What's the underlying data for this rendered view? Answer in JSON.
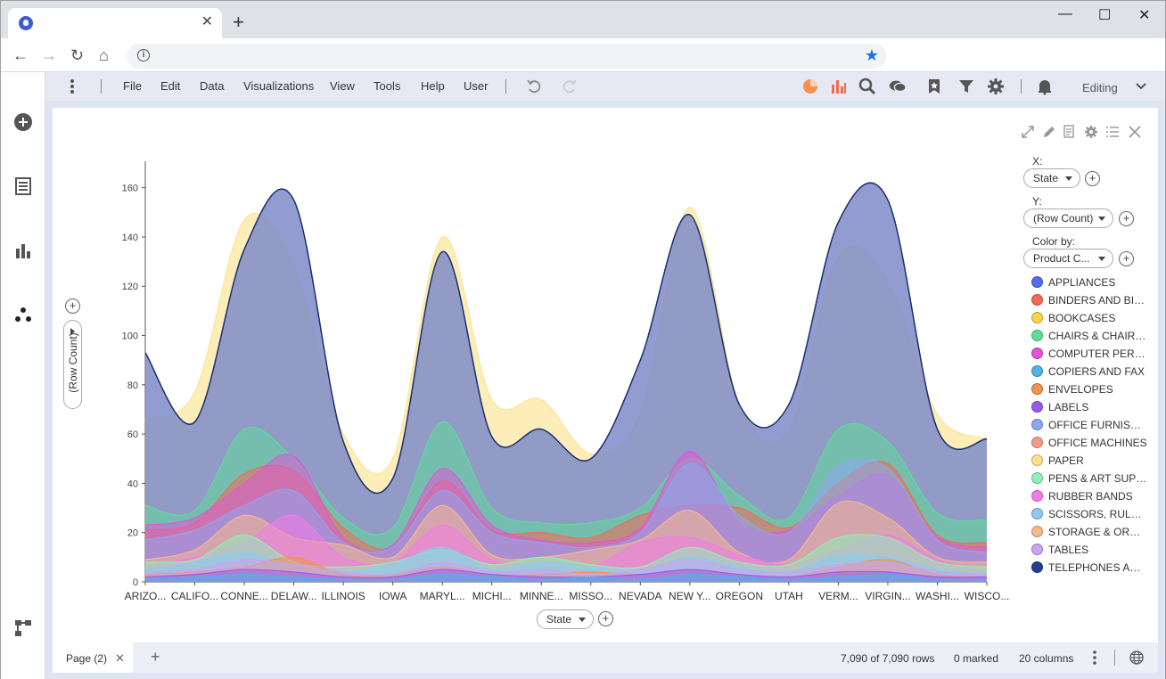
{
  "browser": {
    "tab_close": "✕",
    "new_tab": "+",
    "window_controls": {
      "minimize": "—",
      "maximize": "☐",
      "close": "✕"
    },
    "nav": {
      "back": "←",
      "forward": "→",
      "reload": "↻",
      "home": "⌂"
    },
    "omnibox": {
      "info": "i",
      "star": "★"
    }
  },
  "menubar": {
    "items": [
      "File",
      "Edit",
      "Data",
      "Visualizations",
      "View",
      "Tools",
      "Help",
      "User"
    ],
    "mode": "Editing"
  },
  "axes": {
    "x_selector": "State",
    "y_selector": "(Row Count)"
  },
  "config": {
    "x_label": "X:",
    "x_value": "State",
    "y_label": "Y:",
    "y_value": "(Row Count)",
    "color_label": "Color by:",
    "color_value": "Product C..."
  },
  "legend": [
    {
      "label": "APPLIANCES",
      "color": "#4f6ee8"
    },
    {
      "label": "BINDERS AND BINDER ACCESSORIES",
      "color": "#f36a55"
    },
    {
      "label": "BOOKCASES",
      "color": "#f7d44c"
    },
    {
      "label": "CHAIRS & CHAIRMATS",
      "color": "#5ddc9a"
    },
    {
      "label": "COMPUTER PERIPHERALS",
      "color": "#e055d8"
    },
    {
      "label": "COPIERS AND FAX",
      "color": "#4fb3e6"
    },
    {
      "label": "ENVELOPES",
      "color": "#f4914c"
    },
    {
      "label": "LABELS",
      "color": "#9a5ae8"
    },
    {
      "label": "OFFICE FURNISHINGS",
      "color": "#8ea6ee"
    },
    {
      "label": "OFFICE MACHINES",
      "color": "#f49a8a"
    },
    {
      "label": "PAPER",
      "color": "#fbe28a"
    },
    {
      "label": "PENS & ART SUPPLIES",
      "color": "#8ef0b8"
    },
    {
      "label": "RUBBER BANDS",
      "color": "#f37be8"
    },
    {
      "label": "SCISSORS, RULERS AND TRIMMERS",
      "color": "#8ccaf2"
    },
    {
      "label": "STORAGE & ORGANIZATION",
      "color": "#f7b98c"
    },
    {
      "label": "TABLES",
      "color": "#c9a2f4"
    },
    {
      "label": "TELEPHONES AND COMMUNICATION",
      "color": "#22408f"
    }
  ],
  "chart_data": {
    "type": "area",
    "title": "",
    "xlabel": "State",
    "ylabel": "(Row Count)",
    "ylim": [
      0,
      170
    ],
    "yticks": [
      0,
      20,
      40,
      60,
      80,
      100,
      120,
      140,
      160
    ],
    "categories": [
      "ARIZO...",
      "CALIFO...",
      "CONNE...",
      "DELAW...",
      "ILLINOIS",
      "IOWA",
      "MARYL...",
      "MICHI...",
      "MINNE...",
      "MISSO...",
      "NEVADA",
      "NEW Y...",
      "OREGON",
      "UTAH",
      "VERM...",
      "VIRGIN...",
      "WASHI...",
      "WISCO..."
    ],
    "series": [
      {
        "name": "PAPER",
        "color": "#fbe28a",
        "values": [
          66,
          77,
          147,
          128,
          60,
          50,
          140,
          74,
          74,
          52,
          68,
          152,
          72,
          61,
          132,
          122,
          68,
          58
        ]
      },
      {
        "name": "TELEPHONES AND COMMUNICATION",
        "color": "#22408f",
        "values": [
          93,
          65,
          135,
          155,
          57,
          42,
          134,
          59,
          62,
          50,
          90,
          149,
          72,
          72,
          146,
          155,
          62,
          58
        ]
      },
      {
        "name": "CHAIRS & CHAIRMATS",
        "color": "#5ddc9a",
        "values": [
          31,
          29,
          62,
          50,
          26,
          22,
          65,
          30,
          24,
          24,
          30,
          50,
          35,
          26,
          62,
          57,
          28,
          25
        ]
      },
      {
        "name": "BINDERS AND BINDER ACCESSORIES",
        "color": "#f36a55",
        "values": [
          21,
          24,
          44,
          45,
          22,
          14,
          41,
          21,
          20,
          18,
          27,
          31,
          30,
          22,
          40,
          48,
          19,
          16
        ]
      },
      {
        "name": "COMPUTER PERIPHERALS",
        "color": "#e055d8",
        "values": [
          23,
          26,
          40,
          51,
          18,
          15,
          46,
          23,
          17,
          16,
          22,
          53,
          24,
          21,
          35,
          43,
          18,
          14
        ]
      },
      {
        "name": "OFFICE FURNISHINGS",
        "color": "#8ea6ee",
        "values": [
          17,
          21,
          31,
          37,
          16,
          14,
          37,
          20,
          16,
          14,
          20,
          48,
          27,
          20,
          47,
          46,
          17,
          12
        ]
      },
      {
        "name": "STORAGE & ORGANIZATION",
        "color": "#f7b98c",
        "values": [
          9,
          13,
          27,
          18,
          15,
          10,
          31,
          11,
          10,
          13,
          17,
          29,
          12,
          9,
          32,
          26,
          10,
          8
        ]
      },
      {
        "name": "RUBBER BANDS",
        "color": "#f37be8",
        "values": [
          6,
          10,
          16,
          27,
          10,
          8,
          23,
          9,
          7,
          6,
          16,
          18,
          11,
          7,
          13,
          19,
          9,
          4
        ]
      },
      {
        "name": "PENS & ART SUPPLIES",
        "color": "#8ef0b8",
        "values": [
          8,
          9,
          19,
          8,
          6,
          8,
          13,
          7,
          10,
          7,
          6,
          14,
          8,
          7,
          18,
          18,
          8,
          6
        ]
      },
      {
        "name": "SCISSORS, RULERS AND TRIMMERS",
        "color": "#8ccaf2",
        "values": [
          5,
          8,
          12,
          6,
          4,
          7,
          14,
          5,
          8,
          6,
          4,
          10,
          6,
          4,
          11,
          10,
          5,
          3
        ]
      },
      {
        "name": "ENVELOPES",
        "color": "#f4914c",
        "values": [
          3,
          4,
          6,
          10,
          3,
          3,
          6,
          3,
          3,
          4,
          3,
          5,
          3,
          2,
          6,
          9,
          3,
          2
        ]
      },
      {
        "name": "TABLES",
        "color": "#c9a2f4",
        "values": [
          4,
          5,
          9,
          7,
          4,
          3,
          8,
          4,
          5,
          3,
          5,
          9,
          5,
          4,
          7,
          8,
          4,
          3
        ]
      },
      {
        "name": "LABELS",
        "color": "#9a5ae8",
        "values": [
          2,
          3,
          5,
          4,
          2,
          2,
          5,
          3,
          2,
          2,
          3,
          5,
          3,
          2,
          4,
          4,
          2,
          2
        ]
      },
      {
        "name": "COPIERS AND FAX",
        "color": "#4fb3e6",
        "values": [
          1,
          2,
          3,
          2,
          1,
          1,
          3,
          2,
          1,
          2,
          1,
          3,
          2,
          1,
          2,
          3,
          1,
          1
        ]
      }
    ]
  },
  "footer": {
    "page_tab": "Page (2)",
    "page_tab_close": "✕",
    "add_page": "+",
    "rows": "7,090 of 7,090 rows",
    "marked": "0 marked",
    "columns": "20 columns"
  }
}
